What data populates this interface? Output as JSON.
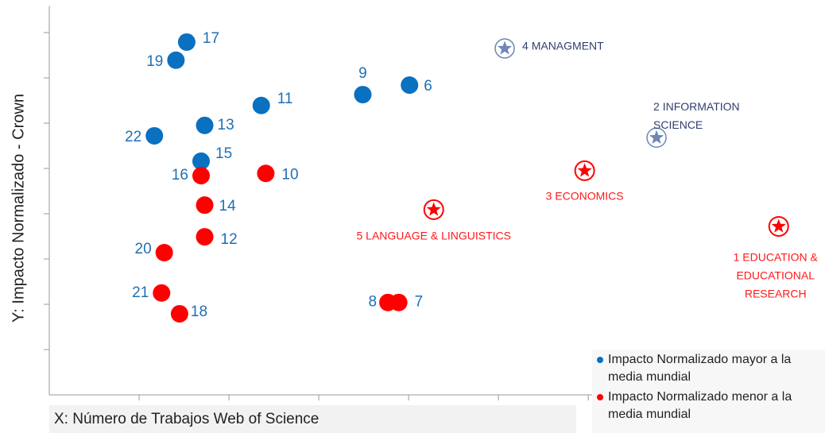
{
  "chart_data": {
    "type": "scatter",
    "y_label": "Y: Impacto Normalizado - Crown",
    "x_label": "X: Número de Trabajos Web of Science",
    "xlim": [
      0,
      8.6
    ],
    "ylim": [
      0,
      8.5
    ],
    "xticks": [
      1,
      2,
      3,
      4,
      5,
      6
    ],
    "yticks": [
      1,
      2,
      3,
      4,
      5,
      6,
      7,
      8
    ],
    "series": [
      {
        "name": "Impacto Normalizado mayor a la media mundial",
        "color": "#0a70c0",
        "marker": "circle",
        "labels": [
          "17",
          "19",
          "22",
          "13",
          "15",
          "11",
          "9",
          "6"
        ],
        "x": [
          1.53,
          1.41,
          1.17,
          1.73,
          1.69,
          2.36,
          3.49,
          4.01
        ],
        "values": [
          7.79,
          7.39,
          5.72,
          5.95,
          5.16,
          6.39,
          6.63,
          6.84
        ]
      },
      {
        "name": "Impacto Normalizado menor a la media mundial",
        "color": "#ff0000",
        "marker": "circle",
        "labels": [
          "16",
          "10",
          "14",
          "12",
          "20",
          "21",
          "18",
          "8",
          "7"
        ],
        "x": [
          1.69,
          2.41,
          1.73,
          1.73,
          1.28,
          1.25,
          1.45,
          3.77,
          3.89
        ],
        "values": [
          4.84,
          4.89,
          4.19,
          3.49,
          3.14,
          2.25,
          1.79,
          2.04,
          2.04
        ]
      },
      {
        "color": "#6d87b8",
        "marker": "star",
        "labels": [
          [
            "4 MANAGMENT"
          ],
          [
            "2 INFORMATION",
            "SCIENCE"
          ]
        ],
        "x": [
          5.07,
          6.76
        ],
        "values": [
          7.65,
          5.68
        ]
      },
      {
        "color": "#ff0000",
        "marker": "star",
        "labels": [
          [
            "3 ECONOMICS"
          ],
          [
            "5 LANGUAGE & LINGUISTICS"
          ],
          [
            "1 EDUCATION &",
            "EDUCATIONAL",
            "RESEARCH"
          ]
        ],
        "x": [
          5.96,
          4.28,
          8.12
        ],
        "values": [
          4.95,
          4.09,
          3.72
        ]
      }
    ]
  }
}
